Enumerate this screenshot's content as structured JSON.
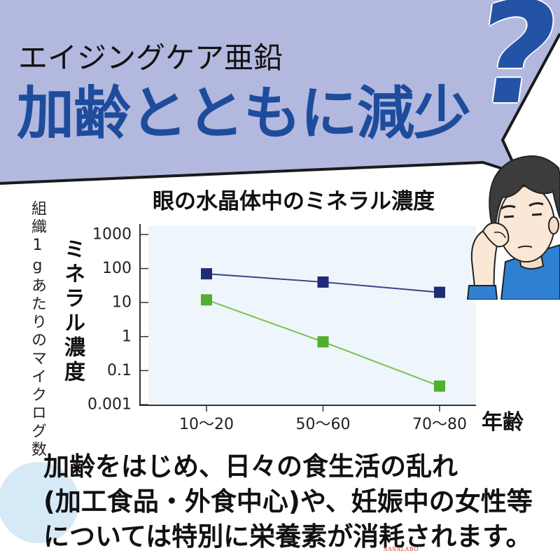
{
  "banner": {
    "subtitle": "エイジングケア亜鉛",
    "headline": "加齢とともに減少",
    "question_mark": "?",
    "fill_color": "#b3b8df",
    "headline_color": "#1e4c9c",
    "question_mark_color": "#2453a6"
  },
  "illustration": {
    "icon": "worried-person-illustration",
    "shirt_color": "#2f80d1"
  },
  "chart_data": {
    "type": "line",
    "title": "眼の水晶体中のミネラル濃度",
    "ylabel": "ミネラル濃度",
    "ylabel_note": "組織1gあたりのマイクログ数",
    "xlabel": "年齢",
    "categories": [
      "10〜20",
      "50〜60",
      "70〜80"
    ],
    "yscale": "log",
    "ylim": [
      0.01,
      1000
    ],
    "ytick_labels": [
      "1000",
      "100",
      "10",
      "1",
      "0.1",
      "0.001"
    ],
    "grid": false,
    "legend": "none",
    "plot_background": "#eef6fc",
    "series": [
      {
        "values": [
          70,
          40,
          20
        ],
        "marker": "square",
        "marker_color": "#1f2b74",
        "line_color": "#3d428a"
      },
      {
        "values": [
          12,
          0.7,
          0.035
        ],
        "marker": "square",
        "marker_color": "#52ae2e",
        "line_color": "#7dc24b"
      }
    ]
  },
  "body_text": {
    "lines": [
      "加齢をはじめ、日々の食生活の乱れ",
      "(加工食品・外食中心)や、妊娠中の女性等",
      "については特別に栄養素が消耗されます。"
    ]
  },
  "decoration": {
    "circle_color": "#d6e9f7"
  },
  "watermark": "SASALABO"
}
